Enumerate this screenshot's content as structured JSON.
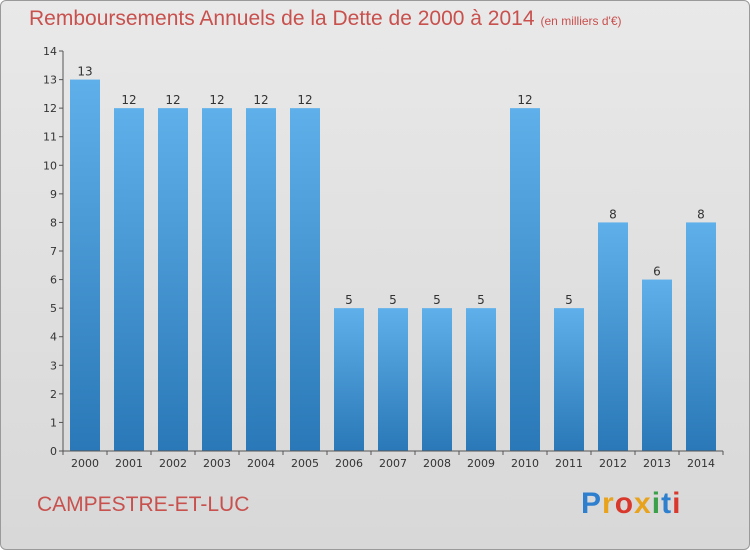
{
  "header": {
    "title": "Remboursements Annuels de la Dette de 2000 à 2014",
    "subtitle": "(en milliers d'€)"
  },
  "footer": {
    "commune": "CAMPESTRE-ET-LUC",
    "brand": "Proxiti"
  },
  "colors": {
    "title": "#c8504d",
    "bar_top": "#5fb0ea",
    "bar_bottom": "#2a78b7",
    "brand_letters": [
      "#2f7fcf",
      "#e8a21c",
      "#d8392c",
      "#e8a21c",
      "#3aa04a",
      "#2f7fcf",
      "#d8392c"
    ]
  },
  "chart_data": {
    "type": "bar",
    "title": "Remboursements Annuels de la Dette de 2000 à 2014",
    "unit": "(en milliers d'€)",
    "categories": [
      "2000",
      "2001",
      "2002",
      "2003",
      "2004",
      "2005",
      "2006",
      "2007",
      "2008",
      "2009",
      "2010",
      "2011",
      "2012",
      "2013",
      "2014"
    ],
    "values": [
      13,
      12,
      12,
      12,
      12,
      12,
      5,
      5,
      5,
      5,
      12,
      5,
      8,
      6,
      8
    ],
    "xlabel": "",
    "ylabel": "",
    "ylim": [
      0,
      14
    ],
    "yticks": [
      0,
      1,
      2,
      3,
      4,
      5,
      6,
      7,
      8,
      9,
      10,
      11,
      12,
      13,
      14
    ],
    "grid": false,
    "legend": "none"
  }
}
